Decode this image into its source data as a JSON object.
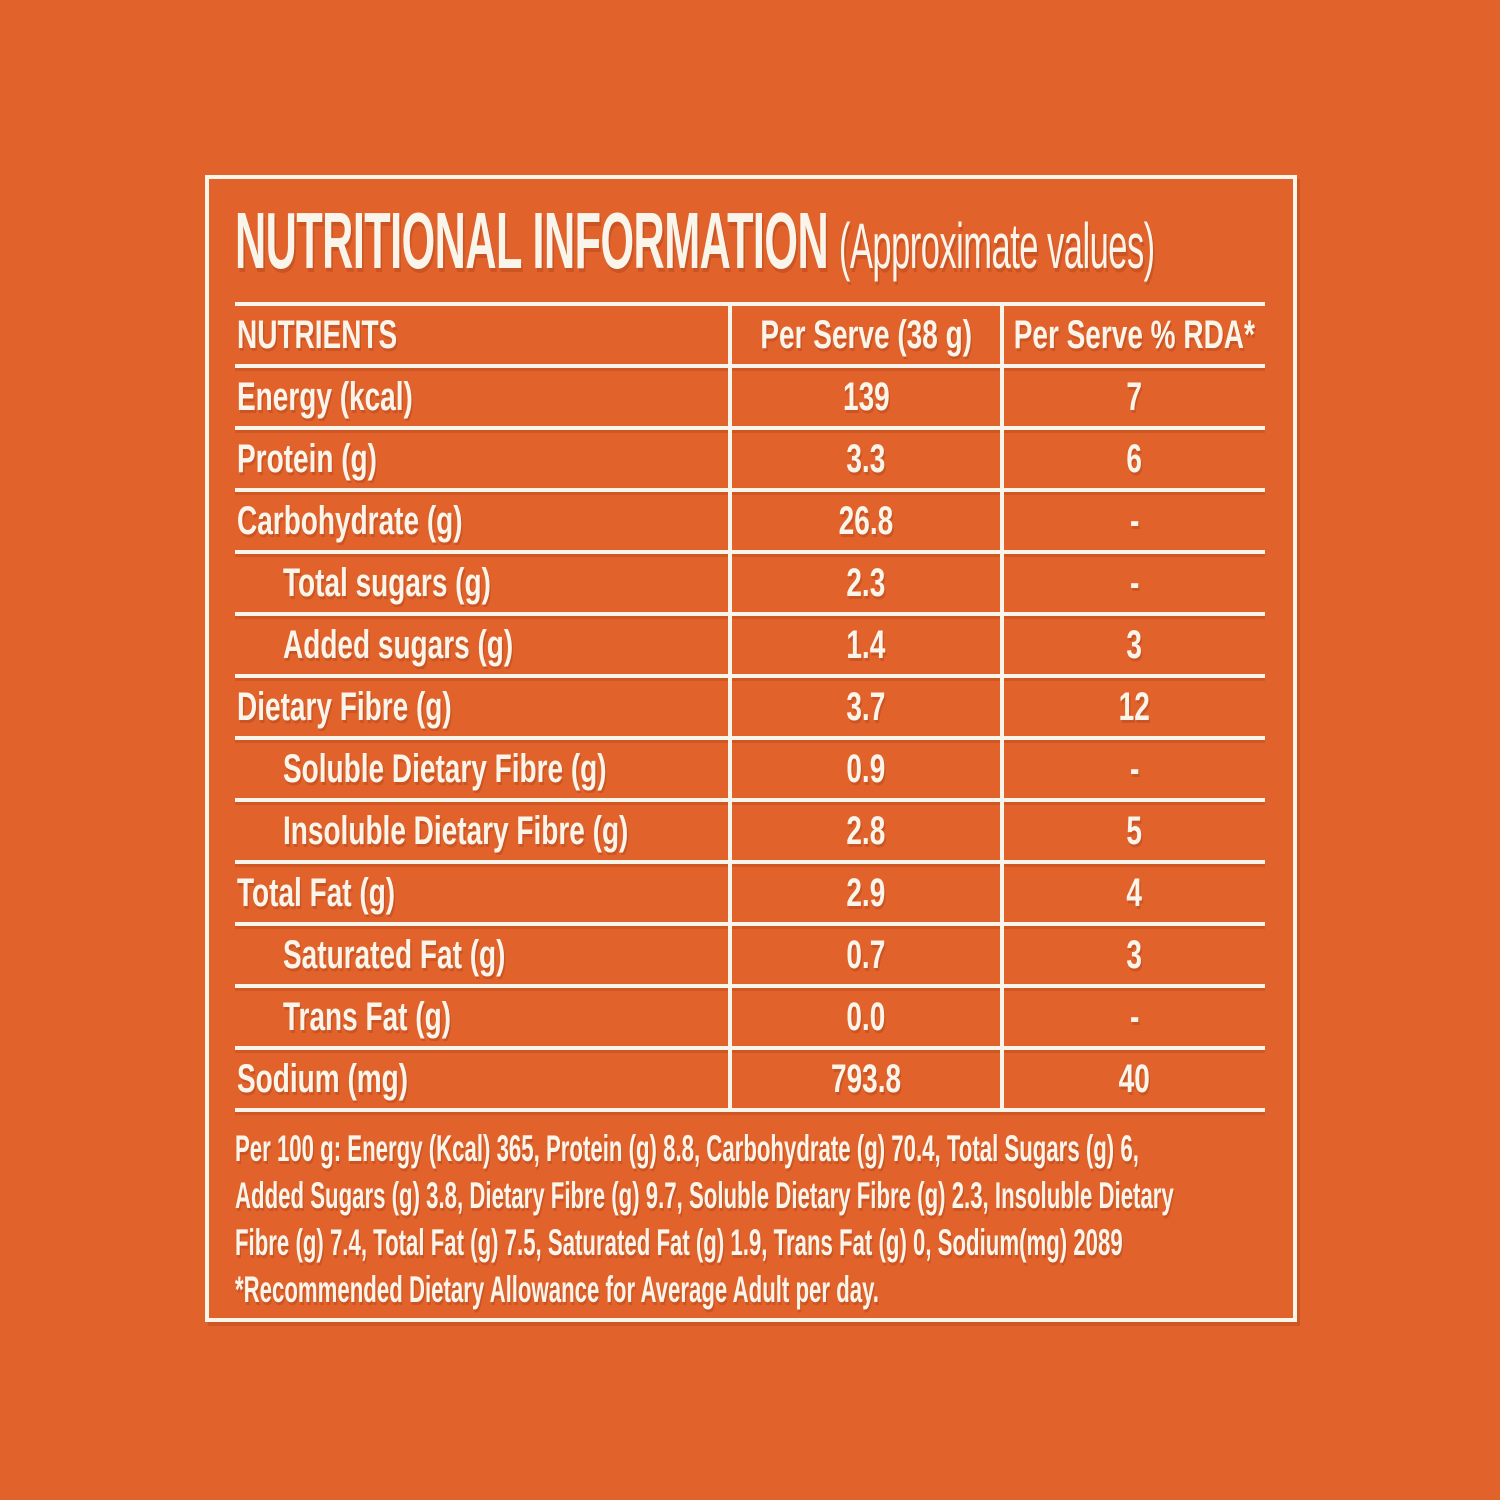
{
  "panel": {
    "title": "NUTRITIONAL INFORMATION",
    "title_suffix": "(Approximate values)"
  },
  "table": {
    "headers": [
      "NUTRIENTS",
      "Per Serve (38 g)",
      "Per Serve % RDA*"
    ],
    "rows": [
      {
        "label": "Energy (kcal)",
        "per_serve": "139",
        "rda": "7"
      },
      {
        "label": "Protein (g)",
        "per_serve": "3.3",
        "rda": "6"
      },
      {
        "label": "Carbohydrate (g)",
        "per_serve": "26.8",
        "rda": "-"
      },
      {
        "label": "Total sugars (g)",
        "per_serve": "2.3",
        "rda": "-"
      },
      {
        "label": "Added sugars (g)",
        "per_serve": "1.4",
        "rda": "3"
      },
      {
        "label": "Dietary Fibre (g)",
        "per_serve": "3.7",
        "rda": "12"
      },
      {
        "label": "Soluble Dietary Fibre (g)",
        "per_serve": "0.9",
        "rda": "-"
      },
      {
        "label": "Insoluble Dietary Fibre (g)",
        "per_serve": "2.8",
        "rda": "5"
      },
      {
        "label": "Total Fat (g)",
        "per_serve": "2.9",
        "rda": "4"
      },
      {
        "label": "Saturated Fat (g)",
        "per_serve": "0.7",
        "rda": "3"
      },
      {
        "label": "Trans Fat (g)",
        "per_serve": "0.0",
        "rda": "-"
      },
      {
        "label": "Sodium (mg)",
        "per_serve": "793.8",
        "rda": "40"
      }
    ]
  },
  "footer": {
    "lines": [
      "Per 100 g: Energy (Kcal) 365, Protein (g) 8.8, Carbohydrate (g) 70.4, Total Sugars (g) 6,",
      "Added Sugars (g) 3.8, Dietary Fibre (g) 9.7, Soluble Dietary Fibre (g) 2.3, Insoluble Dietary",
      "Fibre (g) 7.4, Total Fat (g) 7.5, Saturated Fat (g) 1.9, Trans Fat (g) 0, Sodium(mg) 2089",
      "*Recommended Dietary Allowance for Average Adult per day."
    ]
  },
  "colors": {
    "background": "#E2622B",
    "foreground": "#FAF5EA"
  }
}
